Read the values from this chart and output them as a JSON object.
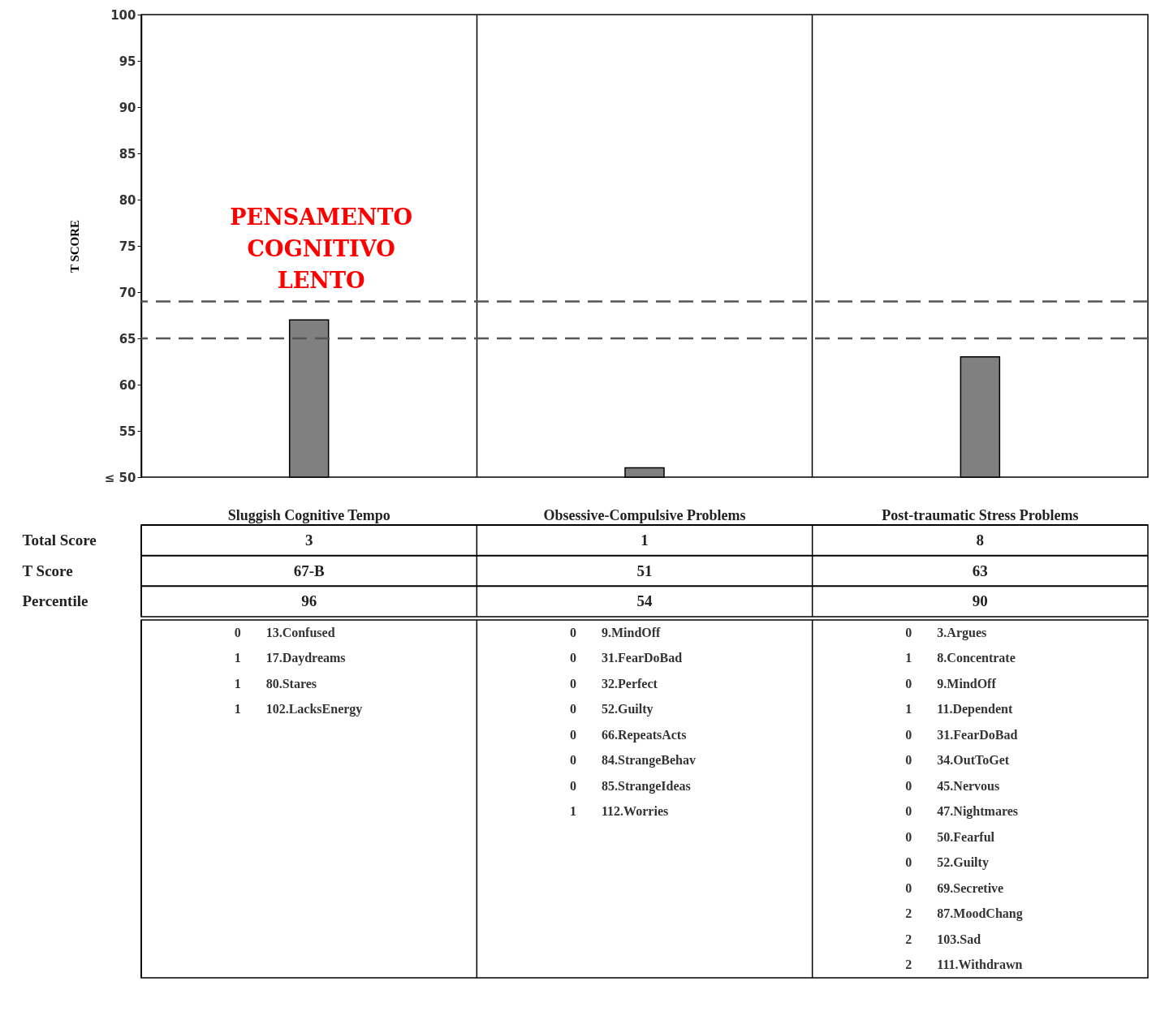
{
  "chart_data": {
    "type": "bar",
    "categories": [
      "Sluggish Cognitive Tempo",
      "Obsessive-Compulsive Problems",
      "Post-traumatic Stress Problems"
    ],
    "values": [
      67,
      51,
      63
    ],
    "value_labels": [
      "67-B",
      "51",
      "63"
    ],
    "color": "#808080",
    "ylabel": "T SCORE",
    "ylim": [
      50,
      100
    ],
    "yticks": [
      {
        "value": 50,
        "label": "≤ 50"
      },
      55,
      60,
      65,
      70,
      75,
      80,
      85,
      90,
      95,
      100
    ],
    "grid": "x",
    "ref_lines": [
      {
        "axis": "y",
        "value": 69,
        "line_style": "dashed",
        "color": "#555555"
      },
      {
        "axis": "y",
        "value": 65,
        "line_style": "dashed",
        "color": "#555555"
      }
    ],
    "annotations": [
      "PENSAMENTO COGNITIVO LENTO",
      "Total Score",
      "T Score",
      "Percentile",
      "3",
      "96",
      "0",
      "13.Confused",
      "1",
      "17.Daydreams",
      "1",
      "80.Stares",
      "1",
      "102.LacksEnergy",
      "1",
      "54",
      "0",
      "9.MindOff",
      "0",
      "31.FearDoBad",
      "0",
      "32.Perfect",
      "0",
      "52.Guilty",
      "0",
      "66.RepeatsActs",
      "0",
      "84.StrangeBehav",
      "0",
      "85.StrangeIdeas",
      "1",
      "112.Worries",
      "8",
      "90",
      "0",
      "3.Argues",
      "1",
      "8.Concentrate",
      "0",
      "9.MindOff",
      "1",
      "11.Dependent",
      "0",
      "31.FearDoBad",
      "0",
      "34.OutToGet",
      "0",
      "45.Nervous",
      "0",
      "47.Nightmares",
      "0",
      "50.Fearful",
      "0",
      "52.Guilty",
      "0",
      "69.Secretive",
      "2",
      "87.MoodChang",
      "2",
      "103.Sad",
      "2",
      "111.Withdrawn"
    ]
  }
}
